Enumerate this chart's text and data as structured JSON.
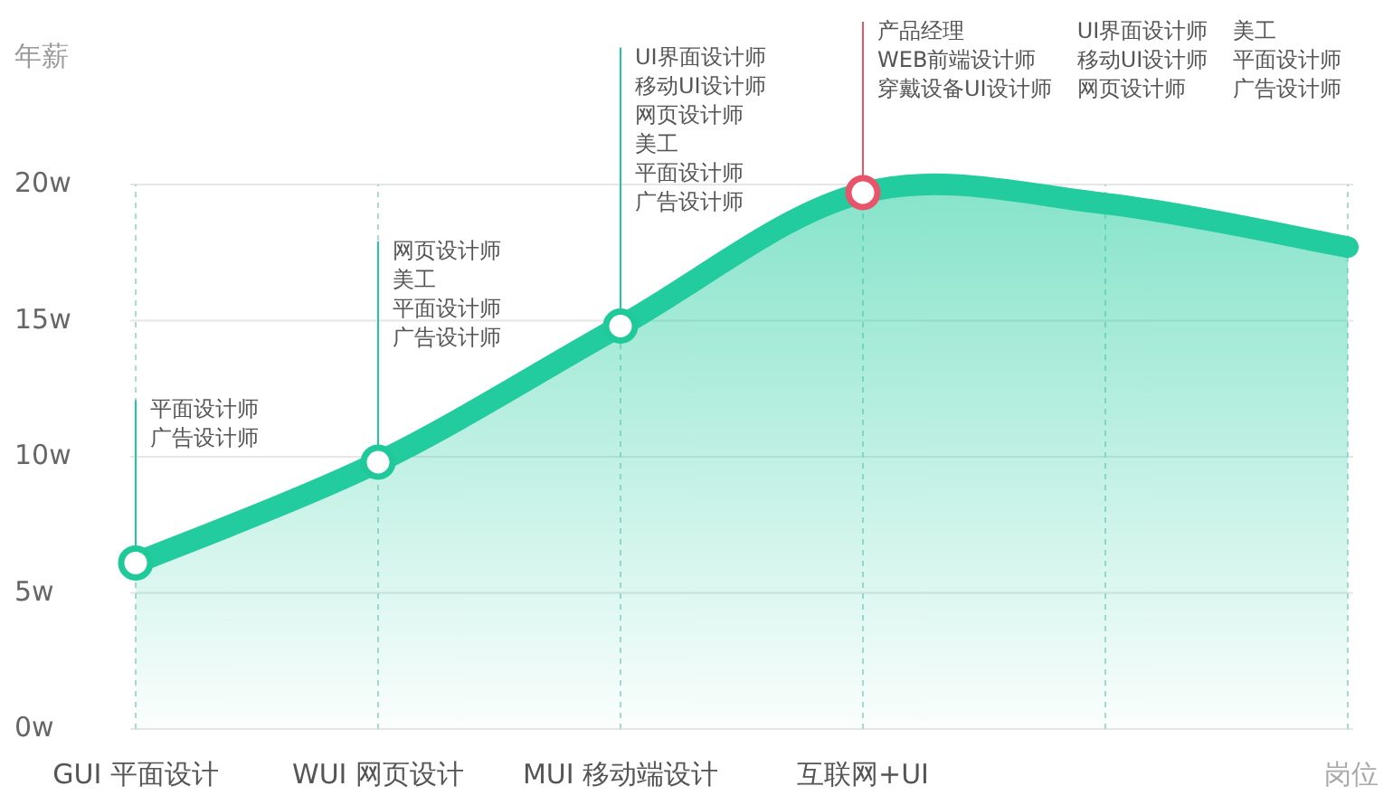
{
  "chart_data": {
    "type": "area",
    "ylabel": "年薪",
    "xlabel": "岗位",
    "categories": [
      "GUI 平面设计",
      "WUI 网页设计",
      "MUI 移动端设计",
      "互联网+UI",
      null,
      null
    ],
    "ylim": [
      0,
      20
    ],
    "yticks": [
      {
        "value": 0,
        "label": "0w"
      },
      {
        "value": 5,
        "label": "5w"
      },
      {
        "value": 10,
        "label": "10w"
      },
      {
        "value": 15,
        "label": "15w"
      },
      {
        "value": 20,
        "label": "20w"
      }
    ],
    "series": [
      {
        "color": "#22cc9e",
        "colors": [
          "#1fc99a",
          "#1fc99a",
          "#1fc99a",
          "#e8546a",
          null,
          null
        ],
        "values": [
          6.1,
          9.8,
          14.8,
          19.7,
          19.3,
          17.7
        ]
      }
    ],
    "grid": true,
    "marker": "circle",
    "line_style": "solid",
    "annotations": [
      {
        "text": "平面设计师",
        "x": "GUI 平面设计",
        "y": 6.1
      },
      "广告设计师",
      {
        "text": "网页设计师",
        "x": "WUI 网页设计",
        "y": 9.8
      },
      "美工",
      "平面设计师",
      "广告设计师",
      {
        "text": "UI界面设计师",
        "x": "MUI 移动端设计",
        "y": 14.8
      },
      "移动UI设计师",
      "网页设计师",
      "美工",
      "平面设计师",
      "广告设计师",
      {
        "text": "产品经理",
        "x": "互联网+UI",
        "y": 19.7
      },
      "WEB前端设计师",
      "穿戴设备UI设计师",
      "UI界面设计师",
      "移动UI设计师",
      "网页设计师",
      "美工",
      "平面设计师",
      "广告设计师"
    ]
  }
}
